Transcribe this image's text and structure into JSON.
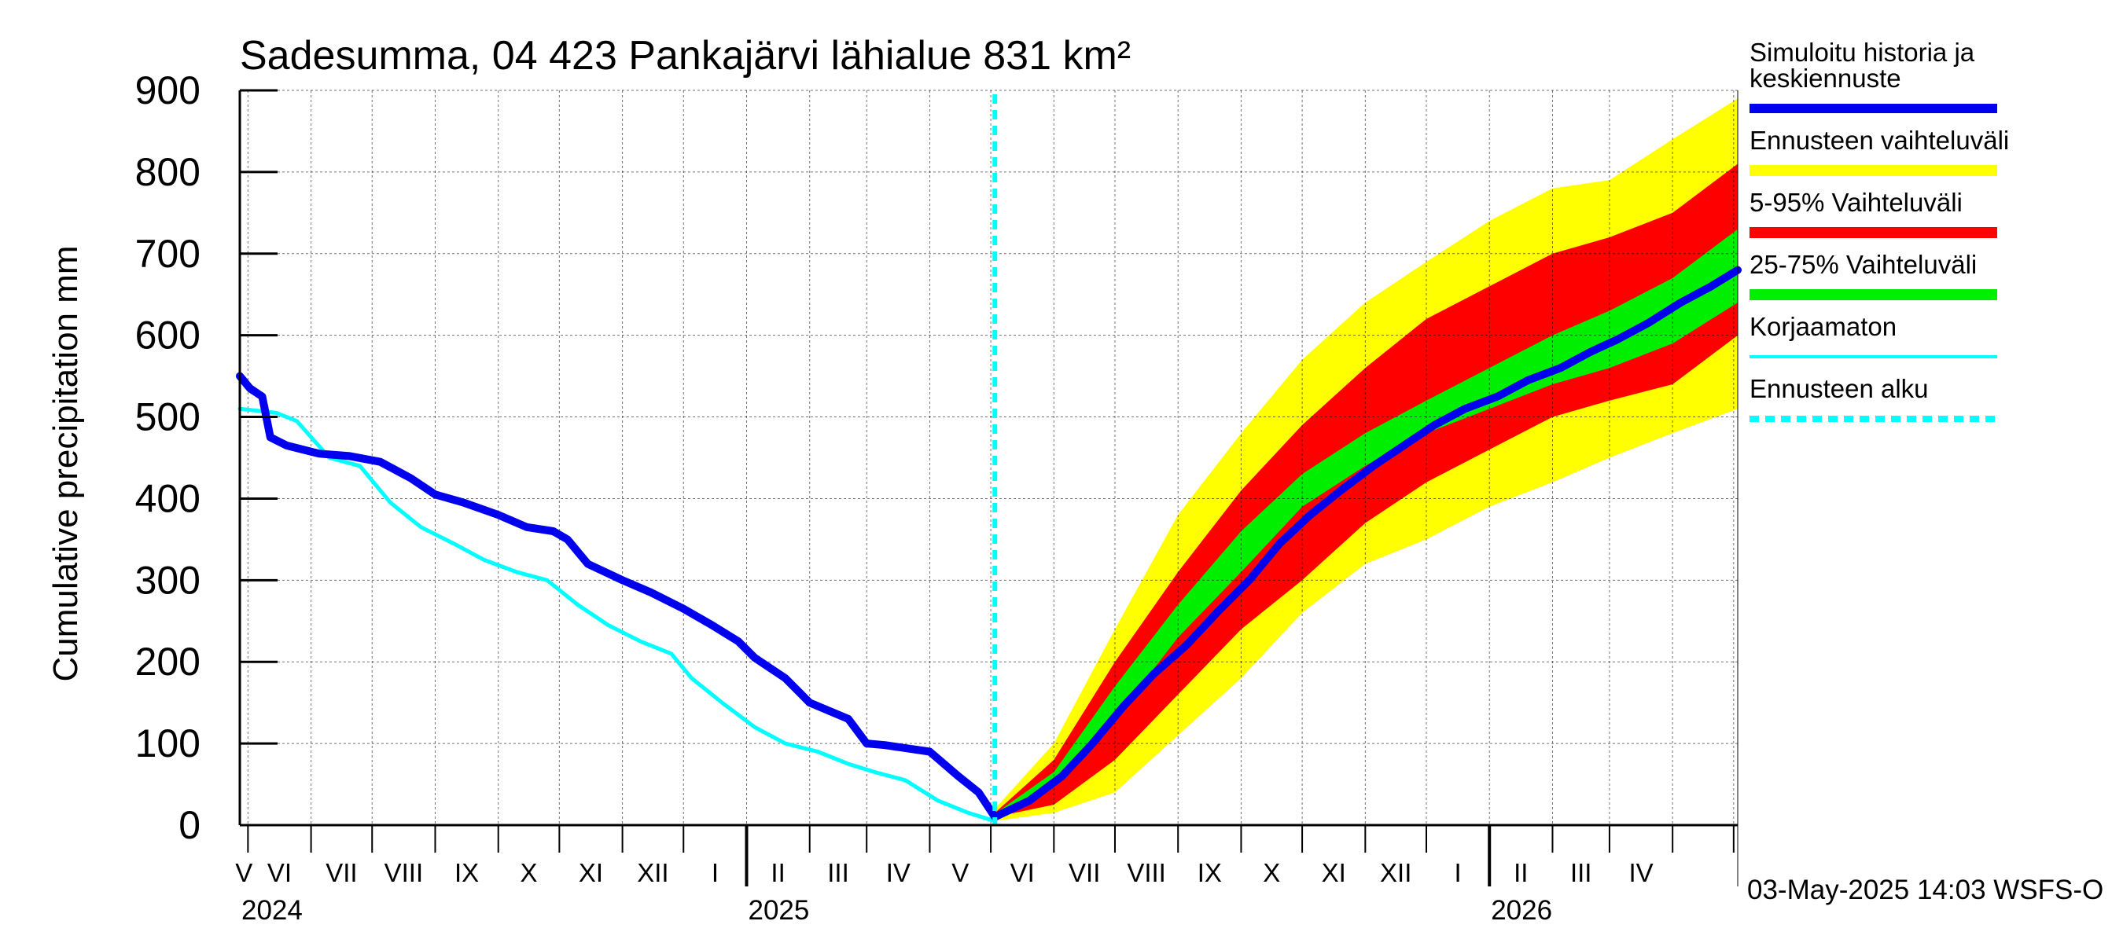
{
  "chart_data": {
    "type": "area",
    "title": "Sadesumma, 04 423 Pankajärvi lähialue 831 km²",
    "ylabel": "Cumulative precipitation   mm",
    "ylim": [
      0,
      900
    ],
    "yticks": [
      "0",
      "100",
      "200",
      "300",
      "400",
      "500",
      "600",
      "700",
      "800",
      "900"
    ],
    "xlim": [
      "2024-04-27",
      "2026-05-03"
    ],
    "months": [
      "V",
      "VI",
      "VII",
      "VIII",
      "IX",
      "X",
      "XI",
      "XII",
      "I",
      "II",
      "III",
      "IV",
      "V",
      "VI",
      "VII",
      "VIII",
      "IX",
      "X",
      "XI",
      "XII",
      "I",
      "II",
      "III",
      "IV"
    ],
    "years": [
      "2024",
      "2025",
      "2026"
    ],
    "forecast_start": "2025-05-03",
    "footer": "03-May-2025 14:03 WSFS-O",
    "grid": true,
    "legend_position": "right",
    "legend": [
      {
        "label": "Simuloitu historia ja keskiennuste",
        "color": "#0000ee",
        "style": "thick"
      },
      {
        "label": "Ennusteen vaihteluväli",
        "color": "#ffff00",
        "style": "band"
      },
      {
        "label": "5-95% Vaihteluväli",
        "color": "#ff0000",
        "style": "band"
      },
      {
        "label": "25-75% Vaihteluväli",
        "color": "#00ee00",
        "style": "band"
      },
      {
        "label": "Korjaamaton",
        "color": "#00ffff",
        "style": "thin"
      },
      {
        "label": "Ennusteen alku",
        "color": "#00ffff",
        "style": "dashed"
      }
    ],
    "series": [
      {
        "name": "Simuloitu historia ja keskiennuste",
        "color": "#0000ee",
        "x": [
          "2024-04-27",
          "2024-05-02",
          "2024-05-08",
          "2024-05-12",
          "2024-05-20",
          "2024-06-05",
          "2024-06-20",
          "2024-07-05",
          "2024-07-20",
          "2024-08-01",
          "2024-08-15",
          "2024-09-01",
          "2024-09-15",
          "2024-09-28",
          "2024-10-05",
          "2024-10-15",
          "2024-11-01",
          "2024-11-15",
          "2024-12-01",
          "2024-12-15",
          "2024-12-28",
          "2025-01-05",
          "2025-01-20",
          "2025-02-01",
          "2025-02-20",
          "2025-03-01",
          "2025-03-10",
          "2025-04-01",
          "2025-04-15",
          "2025-04-25",
          "2025-05-03",
          "2025-05-20",
          "2025-06-05",
          "2025-06-20",
          "2025-07-05",
          "2025-07-20",
          "2025-08-05",
          "2025-08-20",
          "2025-09-05",
          "2025-09-20",
          "2025-10-05",
          "2025-10-20",
          "2025-11-05",
          "2025-11-20",
          "2025-12-05",
          "2025-12-20",
          "2026-01-05",
          "2026-01-20",
          "2026-02-05",
          "2026-02-20",
          "2026-03-05",
          "2026-03-20",
          "2026-04-05",
          "2026-04-20",
          "2026-05-03"
        ],
        "y": [
          550,
          535,
          525,
          475,
          465,
          455,
          452,
          445,
          425,
          405,
          395,
          380,
          365,
          360,
          350,
          320,
          300,
          285,
          265,
          245,
          225,
          205,
          180,
          150,
          130,
          100,
          98,
          90,
          60,
          40,
          10,
          30,
          60,
          100,
          145,
          185,
          220,
          260,
          300,
          345,
          380,
          410,
          440,
          465,
          490,
          510,
          525,
          545,
          560,
          580,
          595,
          615,
          640,
          660,
          680
        ]
      },
      {
        "name": "Korjaamaton",
        "color": "#00ffff",
        "x": [
          "2024-04-27",
          "2024-05-15",
          "2024-05-25",
          "2024-06-10",
          "2024-06-25",
          "2024-07-10",
          "2024-07-25",
          "2024-08-10",
          "2024-08-25",
          "2024-09-10",
          "2024-09-25",
          "2024-10-10",
          "2024-10-25",
          "2024-11-10",
          "2024-11-25",
          "2024-12-05",
          "2024-12-20",
          "2025-01-05",
          "2025-01-20",
          "2025-02-05",
          "2025-02-20",
          "2025-03-05",
          "2025-03-20",
          "2025-04-05",
          "2025-04-20",
          "2025-05-03"
        ],
        "y": [
          510,
          505,
          495,
          450,
          440,
          395,
          365,
          345,
          325,
          310,
          300,
          270,
          245,
          225,
          210,
          180,
          150,
          120,
          100,
          90,
          75,
          65,
          55,
          30,
          15,
          5
        ]
      },
      {
        "name": "Ennusteen vaihteluväli",
        "color": "#ffff00",
        "type": "band",
        "x": [
          "2025-05-03",
          "2025-06-01",
          "2025-07-01",
          "2025-08-01",
          "2025-09-01",
          "2025-10-01",
          "2025-11-01",
          "2025-12-01",
          "2026-01-01",
          "2026-02-01",
          "2026-03-01",
          "2026-04-01",
          "2026-05-03"
        ],
        "lower": [
          5,
          15,
          40,
          110,
          180,
          260,
          320,
          350,
          390,
          420,
          450,
          480,
          510
        ],
        "upper": [
          20,
          100,
          240,
          380,
          480,
          570,
          640,
          690,
          740,
          780,
          790,
          840,
          890
        ]
      },
      {
        "name": "5-95% Vaihteluväli",
        "color": "#ff0000",
        "type": "band",
        "x": [
          "2025-05-03",
          "2025-06-01",
          "2025-07-01",
          "2025-08-01",
          "2025-09-01",
          "2025-10-01",
          "2025-11-01",
          "2025-12-01",
          "2026-01-01",
          "2026-02-01",
          "2026-03-01",
          "2026-04-01",
          "2026-05-03"
        ],
        "lower": [
          10,
          25,
          80,
          160,
          240,
          300,
          370,
          420,
          460,
          500,
          520,
          540,
          600
        ],
        "upper": [
          15,
          80,
          200,
          310,
          410,
          490,
          560,
          620,
          660,
          700,
          720,
          750,
          810
        ]
      },
      {
        "name": "25-75% Vaihteluväli",
        "color": "#00ee00",
        "type": "band",
        "x": [
          "2025-05-03",
          "2025-06-01",
          "2025-07-01",
          "2025-08-01",
          "2025-09-01",
          "2025-10-01",
          "2025-11-01",
          "2025-12-01",
          "2026-01-01",
          "2026-02-01",
          "2026-03-01",
          "2026-04-01",
          "2026-05-03"
        ],
        "lower": [
          12,
          50,
          130,
          230,
          310,
          390,
          440,
          480,
          510,
          540,
          560,
          590,
          640
        ],
        "upper": [
          14,
          65,
          170,
          270,
          360,
          430,
          480,
          520,
          560,
          600,
          630,
          670,
          730
        ]
      }
    ]
  }
}
